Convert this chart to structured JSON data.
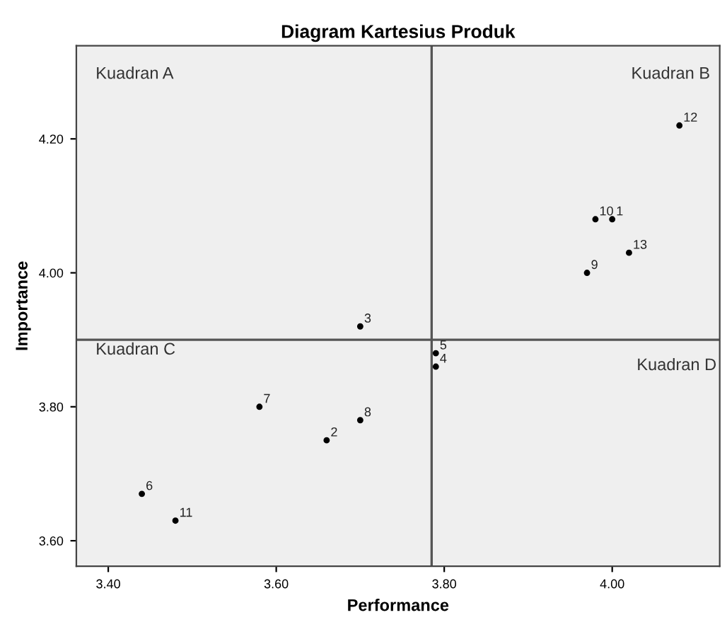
{
  "chart_data": {
    "type": "scatter",
    "title": "Diagram Kartesius Produk",
    "xlabel": "Performance",
    "ylabel": "Importance",
    "x": [
      4.0,
      3.66,
      3.7,
      3.79,
      3.79,
      3.44,
      3.58,
      3.7,
      3.97,
      3.98,
      3.48,
      4.08,
      4.02
    ],
    "series": [
      {
        "color": "#000000",
        "values": [
          4.08,
          3.75,
          3.92,
          3.86,
          3.88,
          3.67,
          3.8,
          3.78,
          4.0,
          4.08,
          3.63,
          4.22,
          4.03
        ]
      }
    ],
    "annotations": [
      "Kuadran A",
      "Kuadran B",
      "Kuadran C",
      "Kuadran D",
      {
        "text": "1",
        "x": 4.0,
        "y": 4.08
      },
      {
        "text": "2",
        "x": 3.66,
        "y": 3.75
      },
      {
        "text": "3",
        "x": 3.7,
        "y": 3.92
      },
      {
        "text": "4",
        "x": 3.79,
        "y": 3.86
      },
      {
        "text": "5",
        "x": 3.79,
        "y": 3.88
      },
      {
        "text": "6",
        "x": 3.44,
        "y": 3.67
      },
      {
        "text": "7",
        "x": 3.58,
        "y": 3.8
      },
      {
        "text": "8",
        "x": 3.7,
        "y": 3.78
      },
      {
        "text": "9",
        "x": 3.97,
        "y": 4.0
      },
      {
        "text": "10",
        "x": 3.98,
        "y": 4.08
      },
      {
        "text": "11",
        "x": 3.48,
        "y": 3.63
      },
      {
        "text": "12",
        "x": 4.08,
        "y": 4.22
      },
      {
        "text": "13",
        "x": 4.02,
        "y": 4.03
      }
    ],
    "ref_lines": [
      {
        "axis": "x",
        "value": 3.785,
        "color": "#555555"
      },
      {
        "axis": "y",
        "value": 3.9,
        "color": "#555555"
      }
    ],
    "xlim": [
      3.362,
      4.128
    ],
    "ylim": [
      3.562,
      4.339
    ],
    "xticks": [
      {
        "value": 3.4,
        "label": "3.40"
      },
      {
        "value": 3.6,
        "label": "3.60"
      },
      {
        "value": 3.8,
        "label": "3.80"
      },
      {
        "value": 4.0,
        "label": "4.00"
      }
    ],
    "yticks": [
      {
        "value": 3.6,
        "label": "3.60"
      },
      {
        "value": 3.8,
        "label": "3.80"
      },
      {
        "value": 4.0,
        "label": "4.00"
      },
      {
        "value": 4.2,
        "label": "4.20"
      }
    ],
    "marker": "circle",
    "grid": false
  }
}
